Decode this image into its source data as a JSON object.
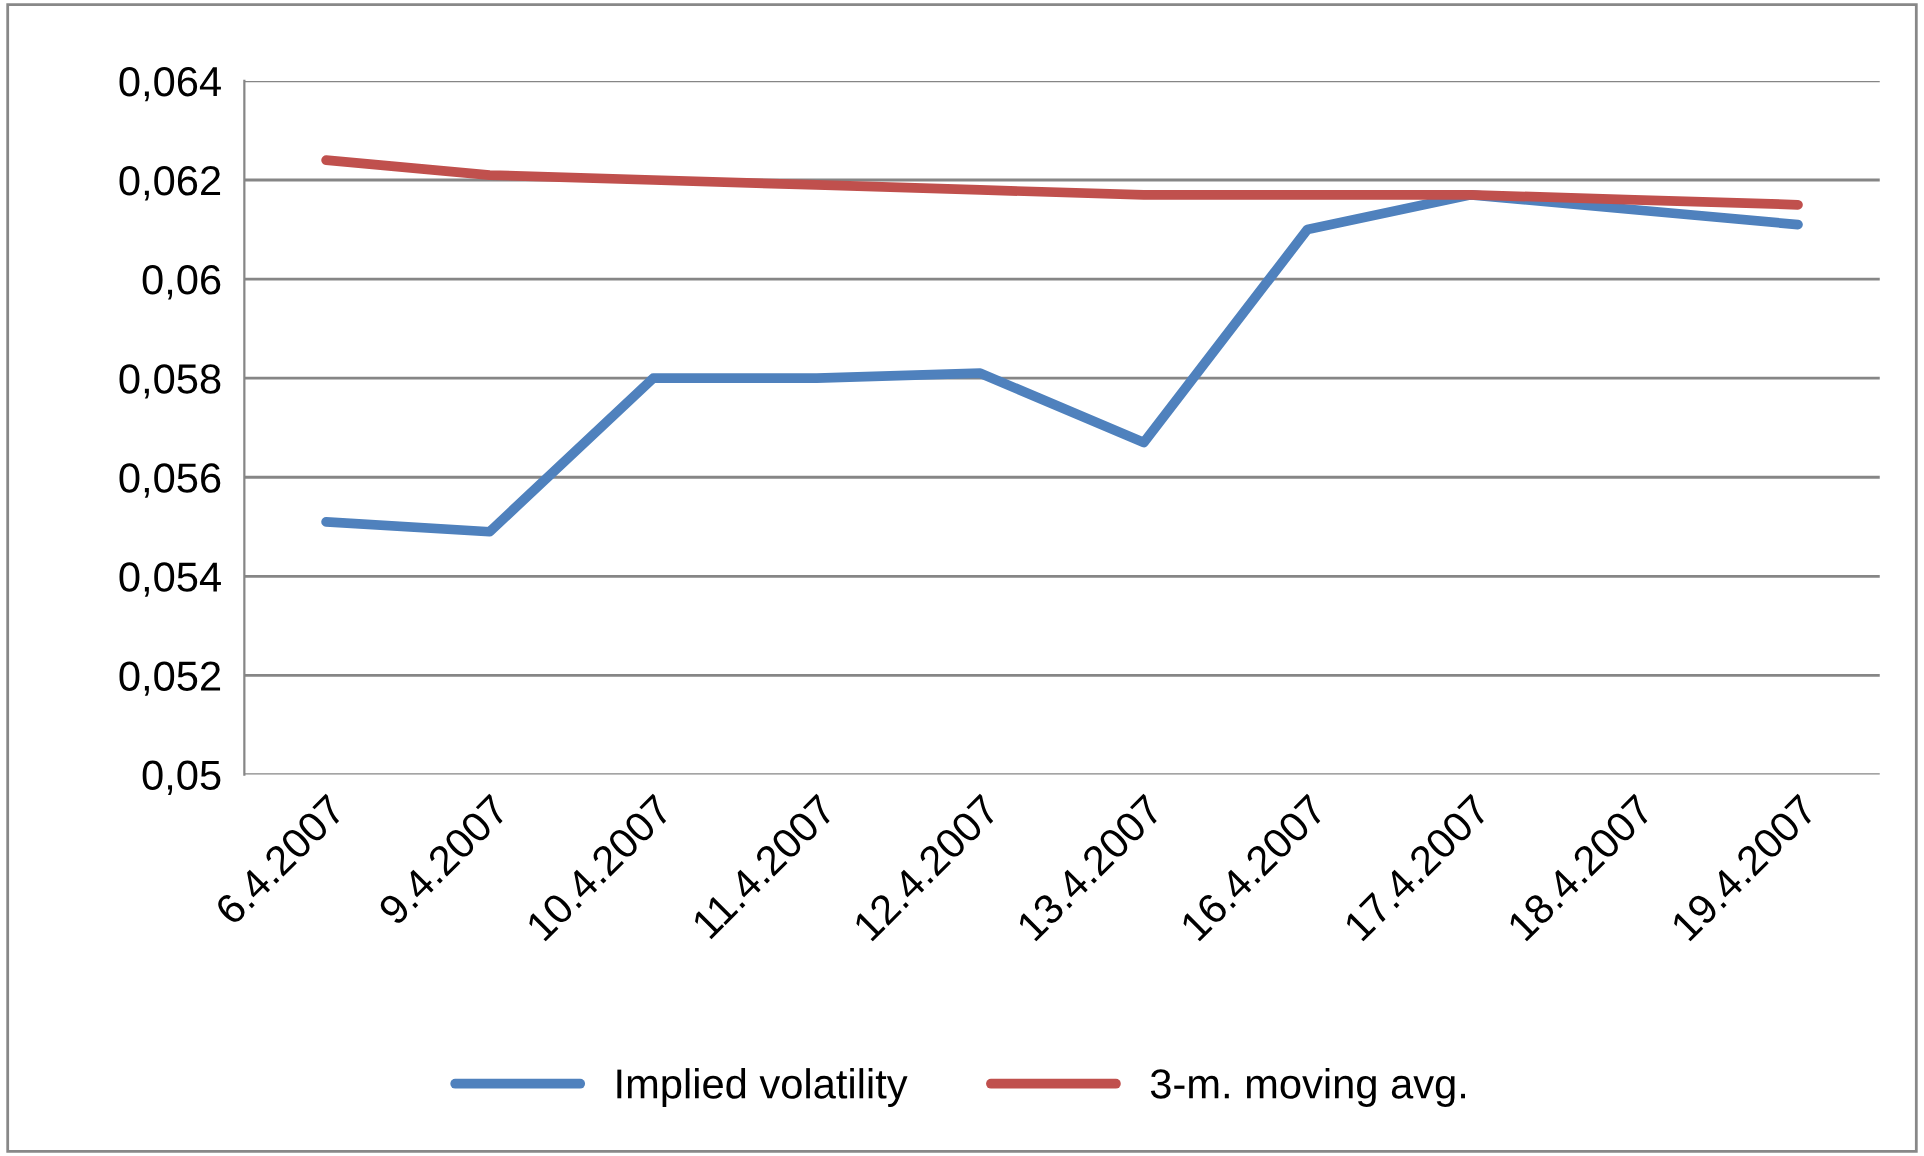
{
  "chart_data": {
    "type": "line",
    "categories": [
      "6.4.2007",
      "9.4.2007",
      "10.4.2007",
      "11.4.2007",
      "12.4.2007",
      "13.4.2007",
      "16.4.2007",
      "17.4.2007",
      "18.4.2007",
      "19.4.2007"
    ],
    "series": [
      {
        "name": "Implied volatility",
        "color": "#4f81bd",
        "values": [
          0.0551,
          0.0549,
          0.058,
          0.058,
          0.0581,
          0.0567,
          0.061,
          0.0617,
          0.0614,
          0.0611
        ]
      },
      {
        "name": "3-m. moving avg.",
        "color": "#c0504d",
        "values": [
          0.0624,
          0.0621,
          0.062,
          0.0619,
          0.0618,
          0.0617,
          0.0617,
          0.0617,
          0.0616,
          0.0615
        ]
      }
    ],
    "ylim": [
      0.05,
      0.064
    ],
    "yticks": [
      {
        "value": 0.05,
        "label": "0,05"
      },
      {
        "value": 0.052,
        "label": "0,052"
      },
      {
        "value": 0.054,
        "label": "0,054"
      },
      {
        "value": 0.056,
        "label": "0,056"
      },
      {
        "value": 0.058,
        "label": "0,058"
      },
      {
        "value": 0.06,
        "label": "0,06"
      },
      {
        "value": 0.062,
        "label": "0,062"
      },
      {
        "value": 0.064,
        "label": "0,064"
      }
    ],
    "grid": "y",
    "legend": "bottom",
    "marker": "none",
    "line_style": "solid"
  }
}
